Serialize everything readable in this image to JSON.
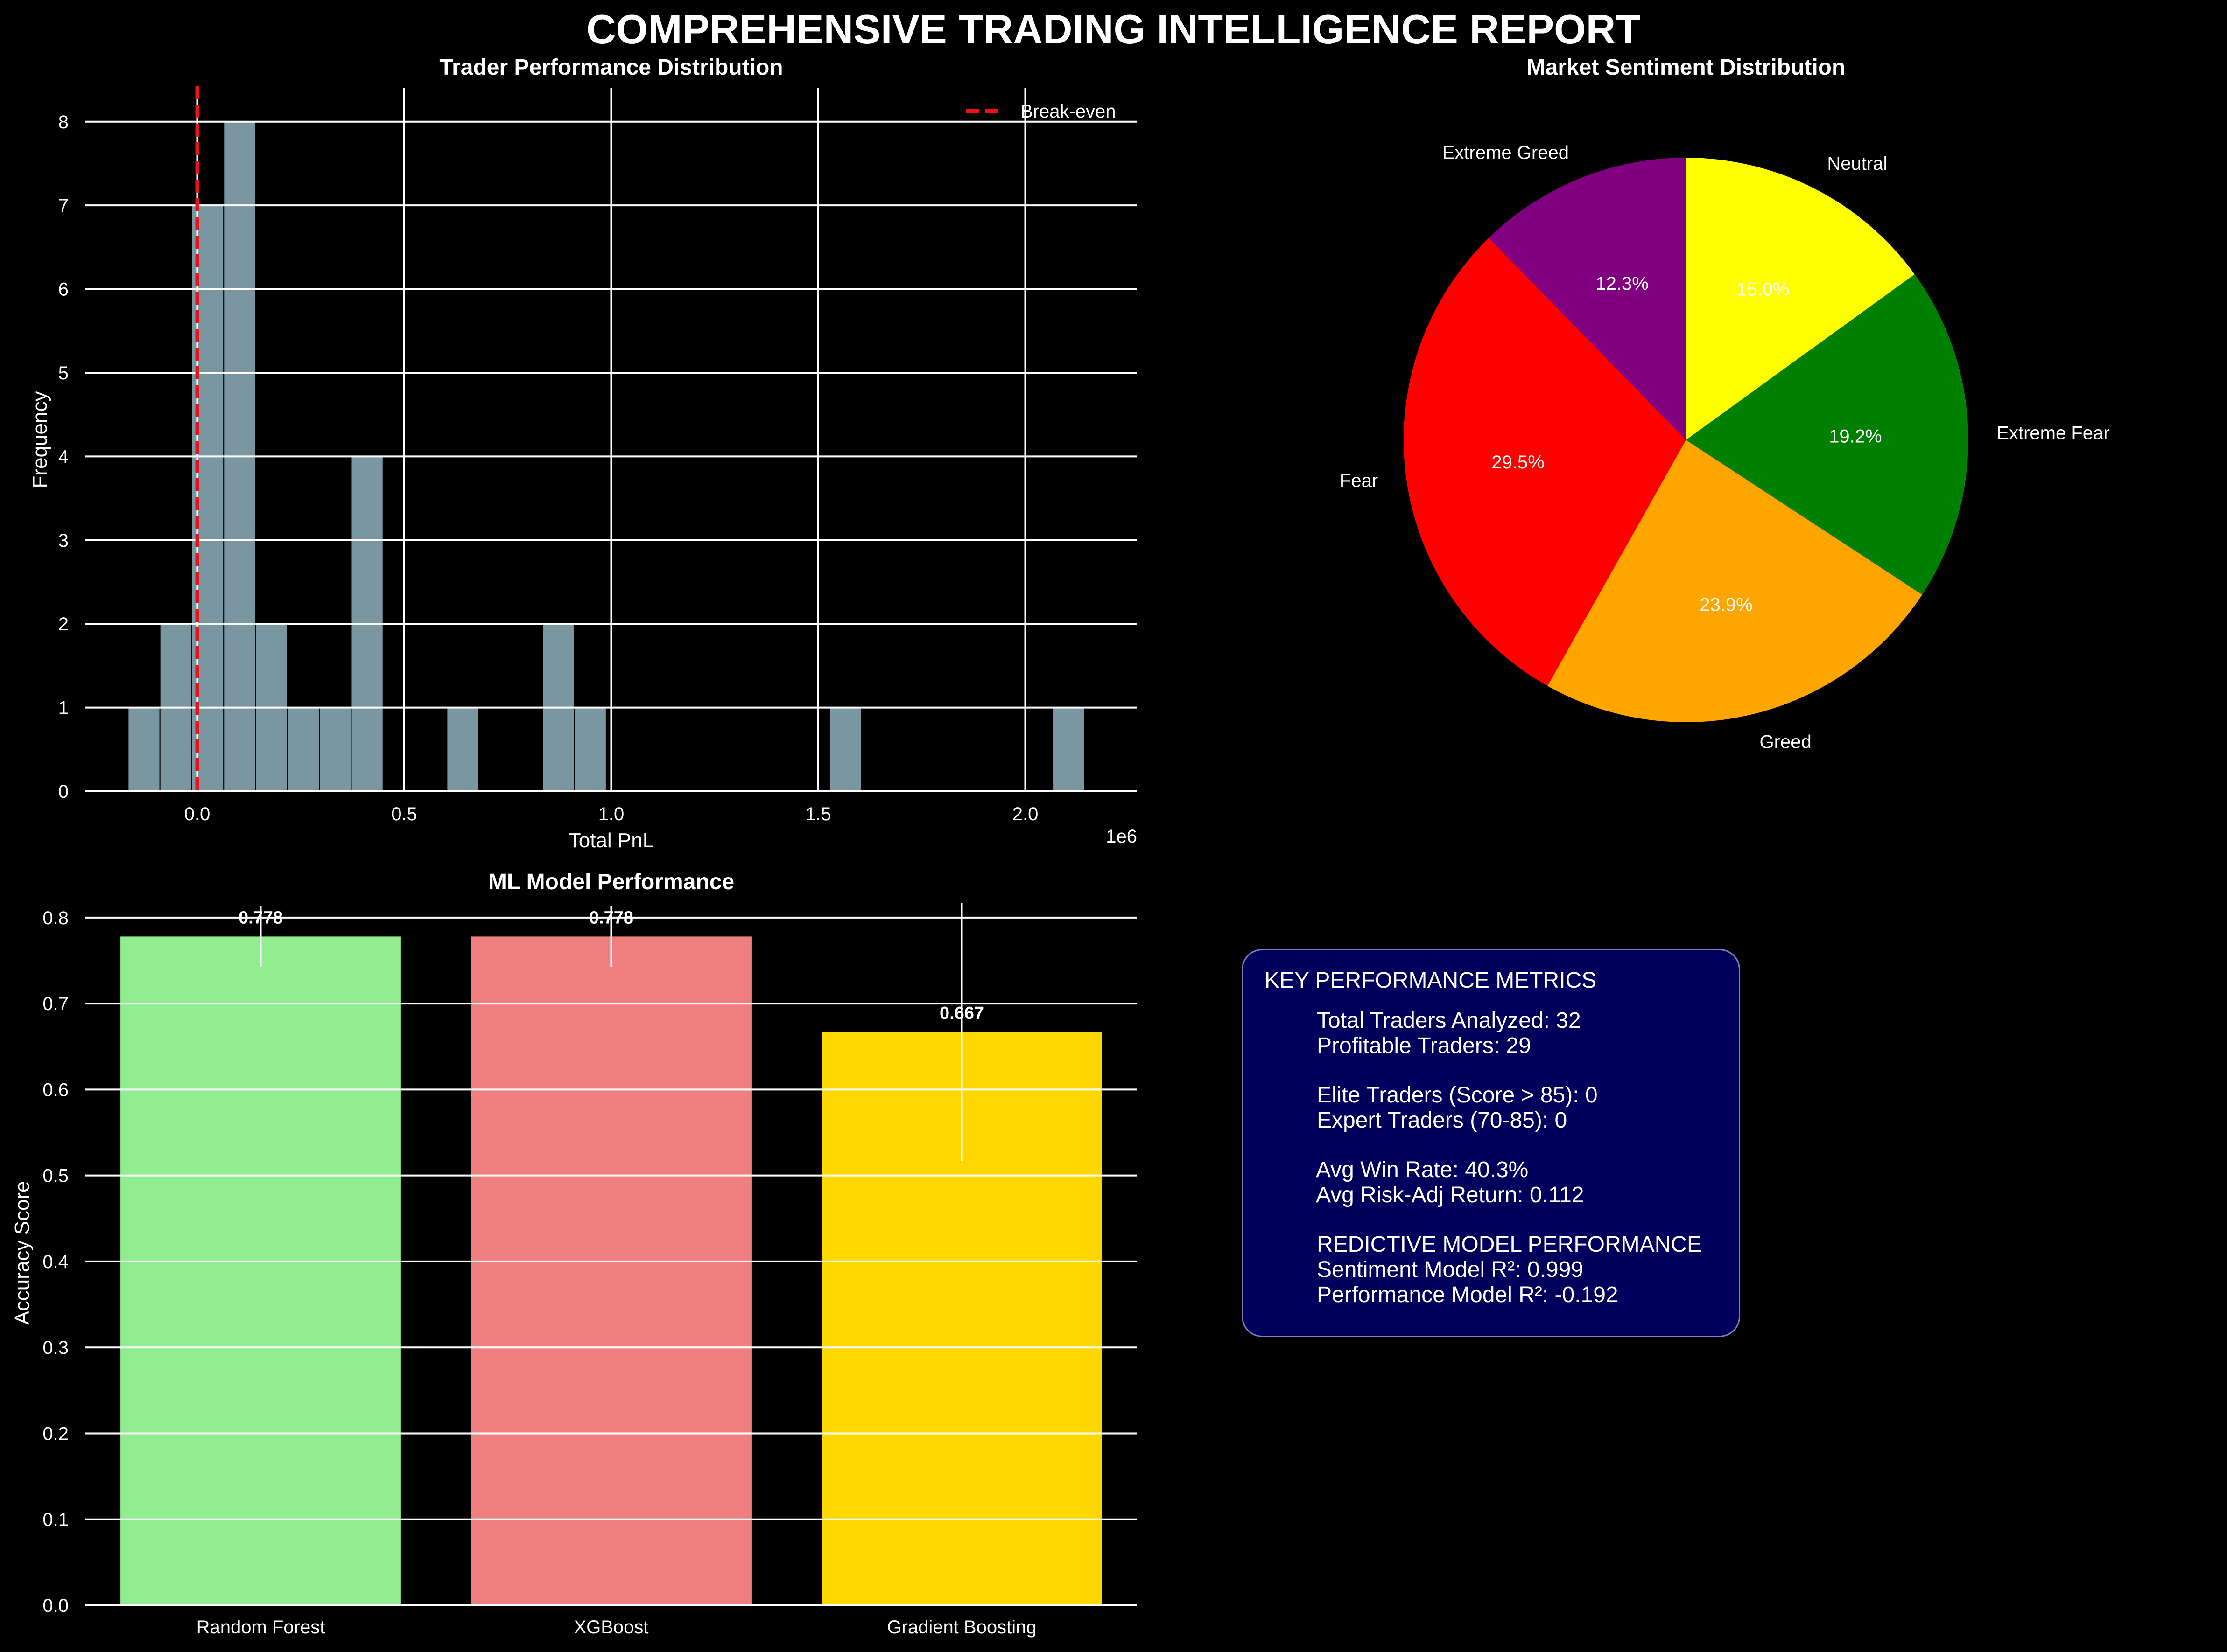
{
  "title": "COMPREHENSIVE TRADING INTELLIGENCE REPORT",
  "colors": {
    "background": "#000000",
    "hist_bar": "#8fb0bc",
    "break_even": "#e8141a",
    "kpi_bg": "#00005c",
    "kpi_border": "#7f7fc0"
  },
  "chart_data": [
    {
      "type": "bar",
      "title": "Trader Performance Distribution",
      "xlabel": "Total PnL",
      "ylabel": "Frequency",
      "x_offset_label": "1e6",
      "xlim": [
        -0.27,
        2.27
      ],
      "ylim": [
        0,
        8.4
      ],
      "xticks": [
        0.0,
        0.5,
        1.0,
        1.5,
        2.0
      ],
      "xtick_labels": [
        "0.0",
        "0.5",
        "1.0",
        "1.5",
        "2.0"
      ],
      "yticks": [
        0,
        1,
        2,
        3,
        4,
        5,
        6,
        7,
        8
      ],
      "ytick_labels": [
        "0",
        "1",
        "2",
        "3",
        "4",
        "5",
        "6",
        "7",
        "8"
      ],
      "grid": true,
      "legend": {
        "position": "top-right",
        "entries": [
          "Break-even"
        ]
      },
      "break_even_x": 0,
      "bins": [
        {
          "x0": -0.167,
          "x1": -0.09,
          "count": 1
        },
        {
          "x0": -0.09,
          "x1": -0.013,
          "count": 2
        },
        {
          "x0": -0.013,
          "x1": 0.064,
          "count": 7
        },
        {
          "x0": 0.064,
          "x1": 0.141,
          "count": 8
        },
        {
          "x0": 0.141,
          "x1": 0.218,
          "count": 2
        },
        {
          "x0": 0.218,
          "x1": 0.295,
          "count": 1
        },
        {
          "x0": 0.295,
          "x1": 0.372,
          "count": 1
        },
        {
          "x0": 0.372,
          "x1": 0.449,
          "count": 4
        },
        {
          "x0": 0.603,
          "x1": 0.68,
          "count": 1
        },
        {
          "x0": 0.834,
          "x1": 0.911,
          "count": 2
        },
        {
          "x0": 0.911,
          "x1": 0.988,
          "count": 1
        },
        {
          "x0": 1.527,
          "x1": 1.604,
          "count": 1
        },
        {
          "x0": 2.066,
          "x1": 2.143,
          "count": 1
        }
      ]
    },
    {
      "type": "pie",
      "title": "Market Sentiment Distribution",
      "slices": [
        {
          "label": "Extreme Greed",
          "value": 12.3,
          "pct_label": "12.3%",
          "color": "#800080"
        },
        {
          "label": "Fear",
          "value": 29.5,
          "pct_label": "29.5%",
          "color": "#ff0000"
        },
        {
          "label": "Greed",
          "value": 23.9,
          "pct_label": "23.9%",
          "color": "#ffa500"
        },
        {
          "label": "Extreme Fear",
          "value": 19.2,
          "pct_label": "19.2%",
          "color": "#008000"
        },
        {
          "label": "Neutral",
          "value": 15.0,
          "pct_label": "15.0%",
          "color": "#ffff00"
        }
      ]
    },
    {
      "type": "bar",
      "title": "ML Model Performance",
      "ylabel": "Accuracy Score",
      "categories": [
        "Random Forest",
        "XGBoost",
        "Gradient Boosting"
      ],
      "values": [
        0.778,
        0.778,
        0.667
      ],
      "value_labels": [
        "0.778",
        "0.778",
        "0.667"
      ],
      "errors": [
        0.035,
        0.035,
        0.15
      ],
      "colors": [
        "#90ee90",
        "#f08080",
        "#ffd700"
      ],
      "ylim": [
        0,
        0.82
      ],
      "yticks": [
        0.0,
        0.1,
        0.2,
        0.3,
        0.4,
        0.5,
        0.6,
        0.7,
        0.8
      ],
      "ytick_labels": [
        "0.0",
        "0.1",
        "0.2",
        "0.3",
        "0.4",
        "0.5",
        "0.6",
        "0.7",
        "0.8"
      ],
      "grid": true
    }
  ],
  "kpi": {
    "title": "KEY PERFORMANCE METRICS",
    "groups": [
      [
        "Total Traders Analyzed: 32",
        "Profitable Traders: 29"
      ],
      [
        "Elite Traders (Score > 85): 0",
        "Expert Traders (70-85): 0"
      ],
      [
        "Avg Win Rate: 40.3%",
        "Avg Risk-Adj Return: 0.112"
      ],
      [
        "REDICTIVE MODEL PERFORMANCE",
        "Sentiment Model R²: 0.999",
        "Performance Model R²: -0.192"
      ]
    ]
  }
}
